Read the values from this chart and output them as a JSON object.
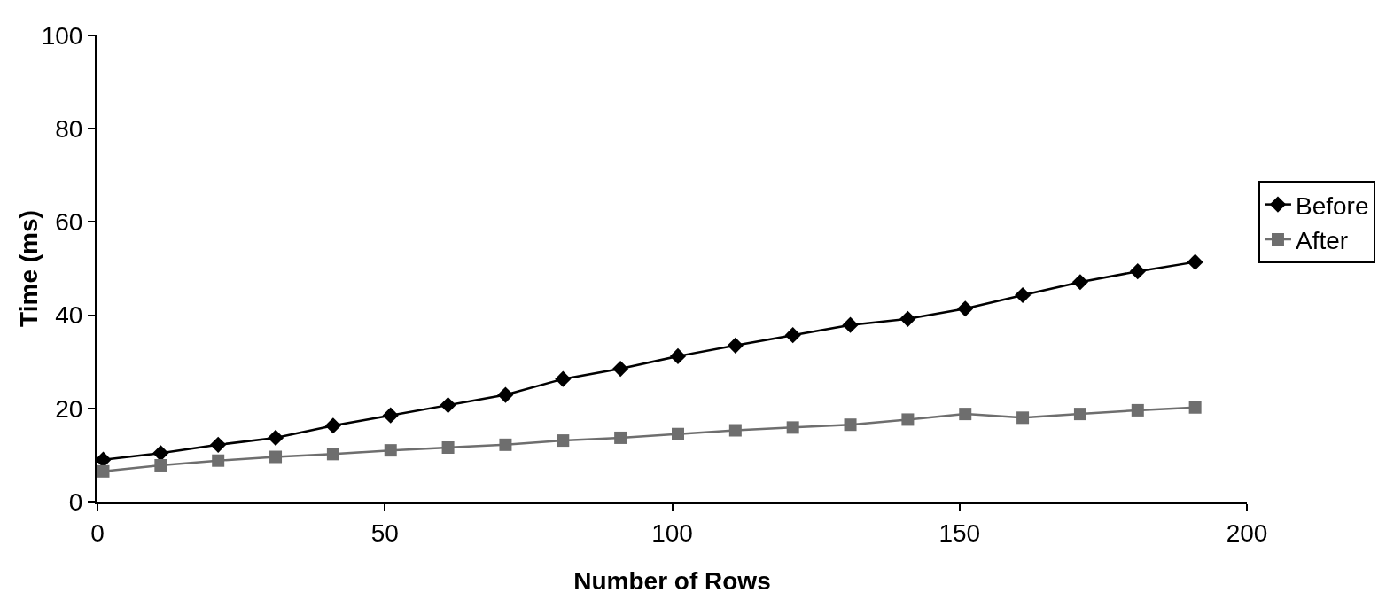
{
  "chart_data": {
    "type": "line",
    "xlabel": "Number of Rows",
    "ylabel": "Time (ms)",
    "x": [
      1,
      11,
      21,
      31,
      41,
      51,
      61,
      71,
      81,
      91,
      101,
      111,
      121,
      131,
      141,
      151,
      161,
      171,
      181,
      191
    ],
    "xlim": [
      0,
      200
    ],
    "xticks": [
      0,
      50,
      100,
      150,
      200
    ],
    "ylim": [
      0,
      100
    ],
    "yticks": [
      0,
      20,
      40,
      60,
      80,
      100
    ],
    "grid": false,
    "legend": "right",
    "line_style": "solid",
    "series": [
      {
        "name": "Before",
        "color": "#000000",
        "marker": "diamond",
        "values": [
          9.0,
          10.4,
          12.2,
          13.7,
          16.3,
          18.5,
          20.7,
          22.9,
          26.3,
          28.5,
          31.2,
          33.5,
          35.7,
          37.9,
          39.2,
          41.4,
          44.3,
          47.1,
          49.4,
          51.4
        ]
      },
      {
        "name": "After",
        "color": "#6e6e6e",
        "marker": "square",
        "values": [
          6.5,
          7.8,
          8.8,
          9.6,
          10.2,
          11.0,
          11.6,
          12.2,
          13.1,
          13.7,
          14.5,
          15.3,
          15.9,
          16.5,
          17.6,
          18.8,
          18.0,
          18.8,
          19.6,
          20.2
        ]
      }
    ]
  }
}
